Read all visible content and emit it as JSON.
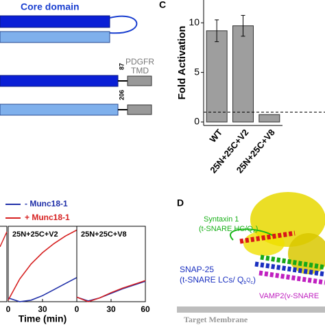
{
  "diagram_b": {
    "domain_label": "Core domain",
    "tmd_label_1": "PDGFR",
    "tmd_label_2": "TMD",
    "residue_1": "87",
    "residue_2": "206"
  },
  "chart_data": [
    {
      "type": "bar",
      "panel_label": "C",
      "ylabel": "Fold Activation",
      "categories": [
        "WT",
        "25N+25C+V2",
        "25N+25C+V8"
      ],
      "values": [
        9.2,
        9.7,
        0.75
      ],
      "errors": [
        1.1,
        1.05,
        null
      ],
      "color": "#9e9e9e",
      "ylim": [
        -0.35,
        12.3
      ],
      "yticks": [
        0,
        5,
        10
      ],
      "reference_line": 1
    },
    {
      "type": "line",
      "xlabel": "Time (min)",
      "xlim": [
        0,
        60
      ],
      "ylim": [
        0,
        1
      ],
      "series": [
        {
          "name": "- Munc18-1",
          "color": "#1f2fa8"
        },
        {
          "name": "+ Munc18-1",
          "color": "#d62020"
        }
      ],
      "panels": [
        {
          "title": "25N+25C+V2",
          "xticks": [
            0,
            30
          ],
          "x": [
            0,
            10,
            20,
            30,
            40,
            50,
            60
          ],
          "values": [
            [
              0.05,
              0.0,
              0.02,
              0.08,
              0.16,
              0.24,
              0.32
            ],
            [
              0.02,
              0.3,
              0.5,
              0.65,
              0.77,
              0.87,
              0.95
            ]
          ]
        },
        {
          "title": "25N+25C+V8",
          "xticks": [
            0,
            30,
            60
          ],
          "x": [
            0,
            10,
            20,
            30,
            40,
            50,
            60
          ],
          "values": [
            [
              0.06,
              0.01,
              0.05,
              0.11,
              0.17,
              0.22,
              0.27
            ],
            [
              0.06,
              0.0,
              0.05,
              0.12,
              0.18,
              0.23,
              0.28
            ]
          ]
        }
      ]
    }
  ],
  "panel_d": {
    "panel_label": "D",
    "syntaxin": "Syntaxin 1",
    "syntaxin_desc": [
      "(t-SNARE HC/Q",
      "a",
      ")"
    ],
    "snap25": "SNAP-25",
    "snap25_desc": [
      "(t-SNARE LCs/ Q",
      "b",
      "Q",
      "c",
      ")"
    ],
    "vamp2": "VAMP2(v-SNARE",
    "membrane": "Target Membrane"
  }
}
